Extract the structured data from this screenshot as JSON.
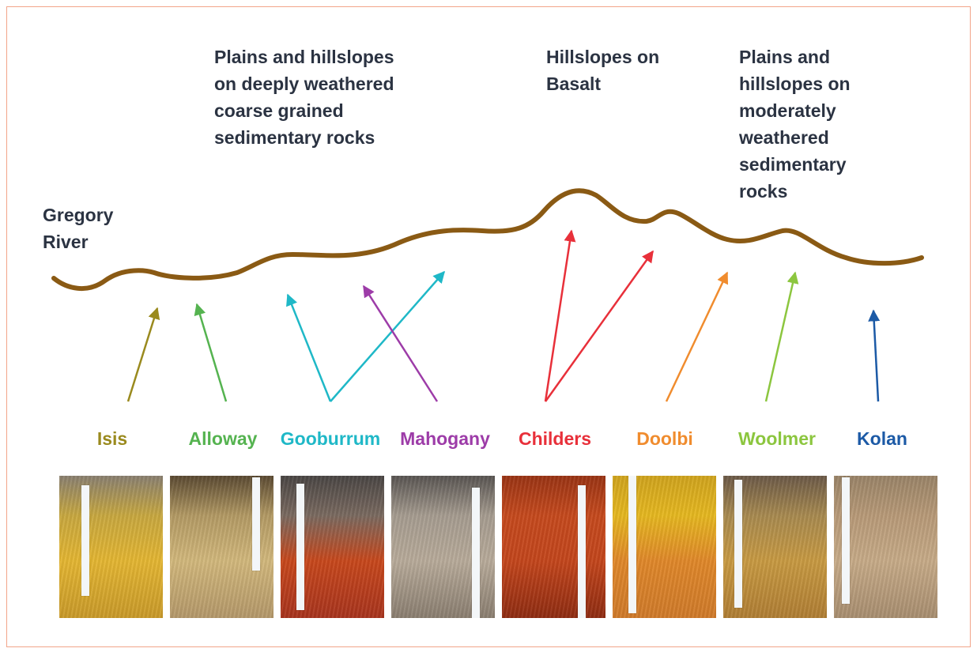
{
  "labels": {
    "river": "Gregory\nRiver",
    "plains_deep": "Plains and hillslopes\non deeply weathered\ncoarse grained\nsedimentary rocks",
    "basalt": "Hillslopes on\nBasalt",
    "plains_moderate": "Plains and\nhillslopes on\nmoderately\nweathered\nsedimentary\nrocks"
  },
  "colors": {
    "terrain": "#8a5a14",
    "text": "#2b3342",
    "border": "#f2a58a"
  },
  "soils": [
    {
      "name": "Isis",
      "color": "#9a8a1e",
      "photo_colors": [
        "#8a8070",
        "#c8a840",
        "#e4b632",
        "#c99a2a"
      ]
    },
    {
      "name": "Alloway",
      "color": "#55b350",
      "photo_colors": [
        "#5b4a32",
        "#b39a64",
        "#d2b87c",
        "#b4986a"
      ]
    },
    {
      "name": "Gooburrum",
      "color": "#1fb8c7",
      "photo_colors": [
        "#4a4644",
        "#7a6a60",
        "#c8481c",
        "#a8341e"
      ]
    },
    {
      "name": "Mahogany",
      "color": "#9d3ca8",
      "photo_colors": [
        "#595552",
        "#a69c90",
        "#b8ab9a",
        "#8a7e70"
      ]
    },
    {
      "name": "Childers",
      "color": "#e8303a",
      "photo_colors": [
        "#9a3414",
        "#c64a1e",
        "#c4461c",
        "#8f2c12"
      ]
    },
    {
      "name": "Doolbi",
      "color": "#f08c2e",
      "photo_colors": [
        "#d0a41e",
        "#e6b820",
        "#e0882a",
        "#d07a2a"
      ]
    },
    {
      "name": "Woolmer",
      "color": "#8cc63f",
      "photo_colors": [
        "#6c5a48",
        "#a88a50",
        "#c89a42",
        "#b07e34"
      ]
    },
    {
      "name": "Kolan",
      "color": "#1c5aa6",
      "photo_colors": [
        "#9a8468",
        "#b89a78",
        "#c7ab88",
        "#a88e70"
      ]
    }
  ]
}
